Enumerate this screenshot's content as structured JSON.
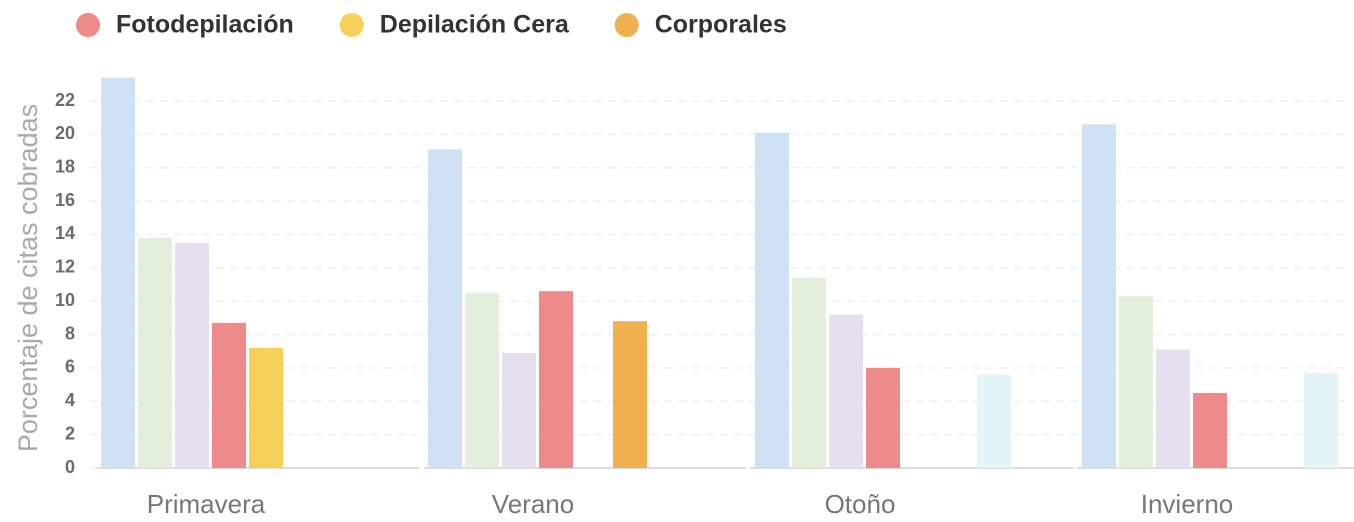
{
  "chart_data": {
    "type": "bar",
    "y_label": "Porcentaje de citas cobradas",
    "categories": [
      "Primavera",
      "Verano",
      "Otoño",
      "Invierno"
    ],
    "series": [
      {
        "color": "#cfe2f5",
        "values": [
          23.4,
          19.1,
          20.1,
          20.6
        ]
      },
      {
        "color": "#e3eedd",
        "values": [
          13.8,
          10.5,
          11.4,
          10.3
        ]
      },
      {
        "color": "#e6dff0",
        "values": [
          13.5,
          6.9,
          9.2,
          7.1
        ]
      },
      {
        "name": "Fotodepilación",
        "color": "#ef8a8a",
        "values": [
          8.7,
          10.6,
          6.0,
          4.5
        ]
      },
      {
        "name": "Depilación Cera",
        "color": "#f7d05a",
        "values": [
          7.2,
          0,
          0,
          0
        ]
      },
      {
        "name": "Corporales",
        "color": "#f0b04f",
        "values": [
          0,
          8.8,
          0,
          0
        ]
      },
      {
        "color": "#e4f5fa",
        "values": [
          0,
          0,
          5.6,
          5.7
        ]
      }
    ],
    "ylim": [
      0,
      23.5
    ],
    "yticks": [
      0,
      2,
      4,
      6,
      8,
      10,
      12,
      14,
      16,
      18,
      20,
      22
    ],
    "grid": true,
    "legend": "top-left"
  }
}
